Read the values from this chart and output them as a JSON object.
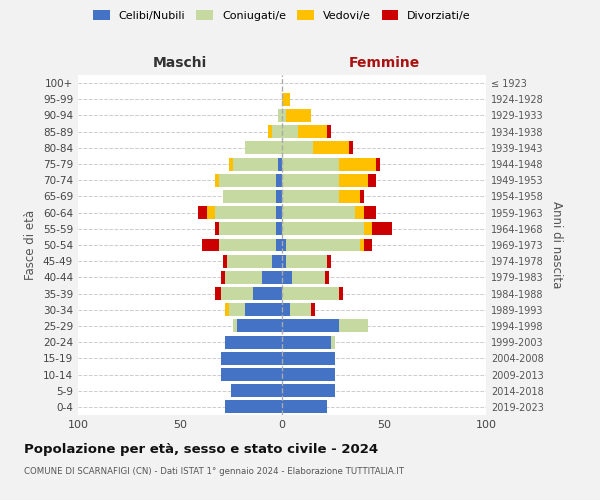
{
  "age_groups": [
    "0-4",
    "5-9",
    "10-14",
    "15-19",
    "20-24",
    "25-29",
    "30-34",
    "35-39",
    "40-44",
    "45-49",
    "50-54",
    "55-59",
    "60-64",
    "65-69",
    "70-74",
    "75-79",
    "80-84",
    "85-89",
    "90-94",
    "95-99",
    "100+"
  ],
  "birth_years": [
    "2019-2023",
    "2014-2018",
    "2009-2013",
    "2004-2008",
    "1999-2003",
    "1994-1998",
    "1989-1993",
    "1984-1988",
    "1979-1983",
    "1974-1978",
    "1969-1973",
    "1964-1968",
    "1959-1963",
    "1954-1958",
    "1949-1953",
    "1944-1948",
    "1939-1943",
    "1934-1938",
    "1929-1933",
    "1924-1928",
    "≤ 1923"
  ],
  "male": {
    "celibi": [
      28,
      25,
      30,
      30,
      28,
      22,
      18,
      14,
      10,
      5,
      3,
      3,
      3,
      3,
      3,
      2,
      0,
      0,
      0,
      0,
      0
    ],
    "coniugati": [
      0,
      0,
      0,
      0,
      0,
      2,
      8,
      16,
      18,
      22,
      28,
      28,
      30,
      26,
      28,
      22,
      18,
      5,
      2,
      0,
      0
    ],
    "vedovi": [
      0,
      0,
      0,
      0,
      0,
      0,
      2,
      0,
      0,
      0,
      0,
      0,
      4,
      0,
      2,
      2,
      0,
      2,
      0,
      0,
      0
    ],
    "divorziati": [
      0,
      0,
      0,
      0,
      0,
      0,
      0,
      3,
      2,
      2,
      8,
      2,
      4,
      0,
      0,
      0,
      0,
      0,
      0,
      0,
      0
    ]
  },
  "female": {
    "nubili": [
      22,
      26,
      26,
      26,
      24,
      28,
      4,
      0,
      5,
      2,
      2,
      0,
      0,
      0,
      0,
      0,
      0,
      0,
      0,
      0,
      0
    ],
    "coniugate": [
      0,
      0,
      0,
      0,
      2,
      14,
      10,
      28,
      16,
      20,
      36,
      40,
      36,
      28,
      28,
      28,
      15,
      8,
      2,
      0,
      0
    ],
    "vedove": [
      0,
      0,
      0,
      0,
      0,
      0,
      0,
      0,
      0,
      0,
      2,
      4,
      4,
      10,
      14,
      18,
      18,
      14,
      12,
      4,
      0
    ],
    "divorziate": [
      0,
      0,
      0,
      0,
      0,
      0,
      2,
      2,
      2,
      2,
      4,
      10,
      6,
      2,
      4,
      2,
      2,
      2,
      0,
      0,
      0
    ]
  },
  "colors": {
    "celibi_nubili": "#4472c4",
    "coniugati": "#c5d9a0",
    "vedovi": "#ffc000",
    "divorziati": "#cc0000"
  },
  "title": "Popolazione per età, sesso e stato civile - 2024",
  "subtitle": "COMUNE DI SCARNAFIGI (CN) - Dati ISTAT 1° gennaio 2024 - Elaborazione TUTTITALIA.IT",
  "xlabel_left": "Maschi",
  "xlabel_right": "Femmine",
  "ylabel_left": "Fasce di età",
  "ylabel_right": "Anni di nascita",
  "xlim": 100,
  "legend_labels": [
    "Celibi/Nubili",
    "Coniugati/e",
    "Vedovi/e",
    "Divorziati/e"
  ],
  "bg_color": "#f2f2f2",
  "plot_bg_color": "#ffffff"
}
